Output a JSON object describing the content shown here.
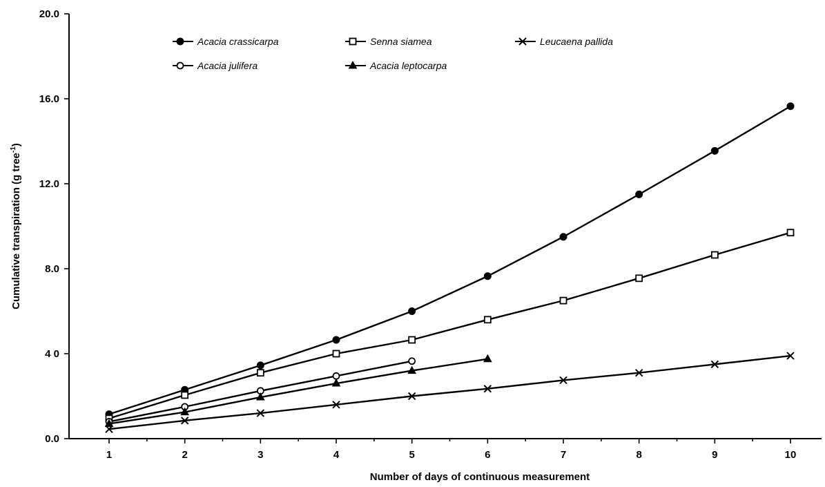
{
  "chart_data": {
    "type": "line",
    "title": "",
    "xlabel": "Number of days of continuous measurement",
    "ylabel": "Cumulative transpiration (g tree",
    "ylabel_superscript": "-1",
    "ylabel_suffix": ")",
    "x": [
      1,
      2,
      3,
      4,
      5,
      6,
      7,
      8,
      9,
      10
    ],
    "xlim": [
      0.5,
      10.3
    ],
    "ylim": [
      0,
      20
    ],
    "x_ticks": [
      1,
      2,
      3,
      4,
      5,
      6,
      7,
      8,
      9,
      10
    ],
    "x_tick_labels": [
      "1",
      "2",
      "3",
      "4",
      "5",
      "6",
      "7",
      "8",
      "9",
      "10"
    ],
    "y_ticks": [
      0,
      4,
      8,
      12,
      16,
      20
    ],
    "y_tick_labels": [
      "0.0",
      "4 0",
      "8.0",
      "12.0",
      "16.0",
      "20.0"
    ],
    "grid": false,
    "legend_position": "top",
    "series": [
      {
        "name": "Acacia crassicarpa",
        "marker": "filled-circle",
        "values": [
          1.15,
          2.3,
          3.45,
          4.65,
          6.0,
          7.65,
          9.5,
          11.5,
          13.55,
          15.65
        ]
      },
      {
        "name": "Senna siamea",
        "marker": "open-square",
        "values": [
          0.95,
          2.05,
          3.1,
          4.0,
          4.65,
          5.6,
          6.5,
          7.55,
          8.65,
          9.7
        ]
      },
      {
        "name": "Leucaena pallida",
        "marker": "cross",
        "values": [
          0.45,
          0.85,
          1.2,
          1.6,
          2.0,
          2.35,
          2.75,
          3.1,
          3.5,
          3.9
        ]
      },
      {
        "name": "Acacia julifera",
        "marker": "open-circle",
        "values": [
          0.8,
          1.5,
          2.25,
          2.95,
          3.65,
          null,
          null,
          null,
          null,
          null
        ]
      },
      {
        "name": "Acacia leptocarpa",
        "marker": "filled-triangle",
        "values": [
          0.7,
          1.25,
          1.95,
          2.6,
          3.2,
          3.75,
          null,
          null,
          null,
          null
        ]
      }
    ]
  }
}
